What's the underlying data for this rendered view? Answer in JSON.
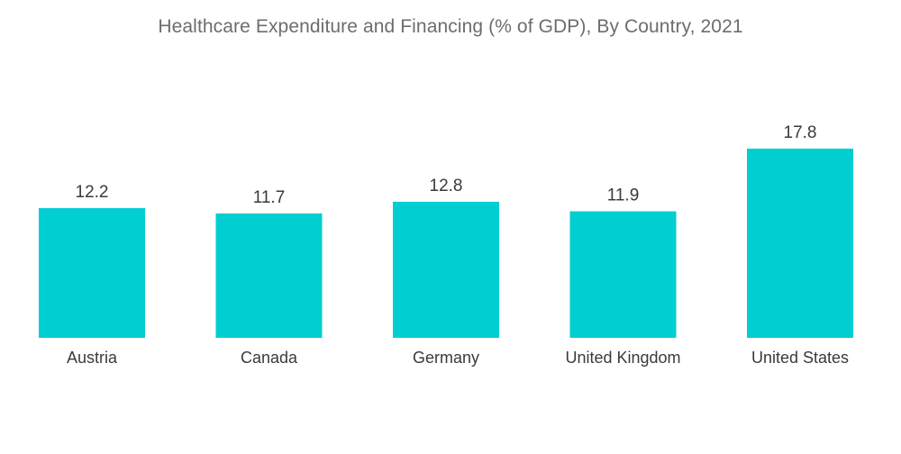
{
  "chart_data": {
    "type": "bar",
    "title": "Healthcare Expenditure and Financing (% of GDP), By Country, 2021",
    "categories": [
      "Austria",
      "Canada",
      "Germany",
      "United Kingdom",
      "United States"
    ],
    "values": [
      12.2,
      11.7,
      12.8,
      11.9,
      17.8
    ],
    "value_labels": [
      "12.2",
      "11.7",
      "12.8",
      "11.9",
      "17.8"
    ],
    "xlabel": "",
    "ylabel": "",
    "ylim": [
      0,
      17.8
    ],
    "grid": false,
    "legend": "none",
    "bar_color": "#00ced1"
  }
}
